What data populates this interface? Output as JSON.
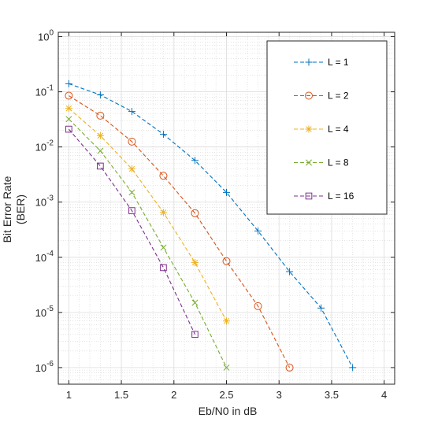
{
  "chart_data": {
    "type": "line",
    "title": "",
    "xlabel": "Eb/N0 in dB",
    "ylabel_lines": [
      "Bit Error Rate",
      "(BER)"
    ],
    "xlim": [
      0.9,
      4.1
    ],
    "ylim": [
      5e-07,
      1.2
    ],
    "yscale": "log",
    "grid": true,
    "minor_grid": true,
    "legend_placement": "top-right",
    "x_ticks": [
      1,
      1.5,
      2,
      2.5,
      3,
      3.5,
      4
    ],
    "x_tick_labels": [
      "1",
      "1.5",
      "2",
      "2.5",
      "3",
      "3.5",
      "4"
    ],
    "y_ticks": [
      {
        "value": 1,
        "base": "10",
        "exp": "0"
      },
      {
        "value": 0.1,
        "base": "10",
        "exp": "-1"
      },
      {
        "value": 0.01,
        "base": "10",
        "exp": "-2"
      },
      {
        "value": 0.001,
        "base": "10",
        "exp": "-3"
      },
      {
        "value": 0.0001,
        "base": "10",
        "exp": "-4"
      },
      {
        "value": 1e-05,
        "base": "10",
        "exp": "-5"
      },
      {
        "value": 1e-06,
        "base": "10",
        "exp": "-6"
      }
    ],
    "series": [
      {
        "name": "L = 1",
        "color": "#0072BD",
        "marker": "plus",
        "x": [
          1,
          1.3,
          1.6,
          1.9,
          2.2,
          2.5,
          2.8,
          3.1,
          3.4,
          3.7
        ],
        "y": [
          0.14,
          0.088,
          0.044,
          0.017,
          0.0057,
          0.0015,
          0.0003,
          5.5e-05,
          1.2e-05,
          1e-06
        ]
      },
      {
        "name": "L = 2",
        "color": "#D95319",
        "marker": "circle",
        "x": [
          1,
          1.3,
          1.6,
          1.9,
          2.2,
          2.5,
          2.8,
          3.1
        ],
        "y": [
          0.085,
          0.037,
          0.0125,
          0.003,
          0.00063,
          8.5e-05,
          1.3e-05,
          1e-06
        ]
      },
      {
        "name": "L = 4",
        "color": "#EDB120",
        "marker": "asterisk",
        "x": [
          1,
          1.3,
          1.6,
          1.9,
          2.2,
          2.5
        ],
        "y": [
          0.05,
          0.016,
          0.004,
          0.00065,
          8e-05,
          7e-06
        ]
      },
      {
        "name": "L = 8",
        "color": "#77AC30",
        "marker": "cross",
        "x": [
          1,
          1.3,
          1.6,
          1.9,
          2.2,
          2.5
        ],
        "y": [
          0.032,
          0.0085,
          0.0015,
          0.00015,
          1.5e-05,
          1e-06
        ]
      },
      {
        "name": "L = 16",
        "color": "#7E2F8E",
        "marker": "square",
        "x": [
          1,
          1.3,
          1.6,
          1.9,
          2.2
        ],
        "y": [
          0.021,
          0.0045,
          0.0007,
          6.5e-05,
          4e-06
        ]
      }
    ]
  }
}
